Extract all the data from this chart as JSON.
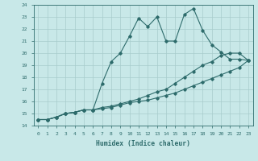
{
  "xlabel": "Humidex (Indice chaleur)",
  "ylabel": "",
  "bg_color": "#c8e8e8",
  "grid_color": "#a8cccc",
  "line_color": "#2d6b6b",
  "xlim": [
    -0.5,
    23.5
  ],
  "ylim": [
    14,
    24
  ],
  "xticks": [
    0,
    1,
    2,
    3,
    4,
    5,
    6,
    7,
    8,
    9,
    10,
    11,
    12,
    13,
    14,
    15,
    16,
    17,
    18,
    19,
    20,
    21,
    22,
    23
  ],
  "yticks": [
    14,
    15,
    16,
    17,
    18,
    19,
    20,
    21,
    22,
    23,
    24
  ],
  "line1_x": [
    0,
    1,
    2,
    3,
    4,
    5,
    6,
    7,
    8,
    9,
    10,
    11,
    12,
    13,
    14,
    15,
    16,
    17,
    18,
    19,
    20,
    21,
    22,
    23
  ],
  "line1_y": [
    14.5,
    14.5,
    14.7,
    15.0,
    15.1,
    15.3,
    15.3,
    17.5,
    19.3,
    20.0,
    21.4,
    22.9,
    22.2,
    23.0,
    21.0,
    21.0,
    23.2,
    23.7,
    21.9,
    20.7,
    20.1,
    19.5,
    19.5,
    19.4
  ],
  "line2_x": [
    0,
    1,
    2,
    3,
    4,
    5,
    6,
    7,
    8,
    9,
    10,
    11,
    12,
    13,
    14,
    15,
    16,
    17,
    18,
    19,
    20,
    21,
    22,
    23
  ],
  "line2_y": [
    14.5,
    14.5,
    14.7,
    15.0,
    15.1,
    15.3,
    15.3,
    15.5,
    15.6,
    15.8,
    16.0,
    16.2,
    16.5,
    16.8,
    17.0,
    17.5,
    18.0,
    18.5,
    19.0,
    19.3,
    19.8,
    20.0,
    20.0,
    19.4
  ],
  "line3_x": [
    0,
    1,
    2,
    3,
    4,
    5,
    6,
    7,
    8,
    9,
    10,
    11,
    12,
    13,
    14,
    15,
    16,
    17,
    18,
    19,
    20,
    21,
    22,
    23
  ],
  "line3_y": [
    14.5,
    14.5,
    14.7,
    15.0,
    15.1,
    15.3,
    15.3,
    15.4,
    15.5,
    15.7,
    15.9,
    16.0,
    16.1,
    16.3,
    16.5,
    16.7,
    17.0,
    17.3,
    17.6,
    17.9,
    18.2,
    18.5,
    18.8,
    19.4
  ]
}
